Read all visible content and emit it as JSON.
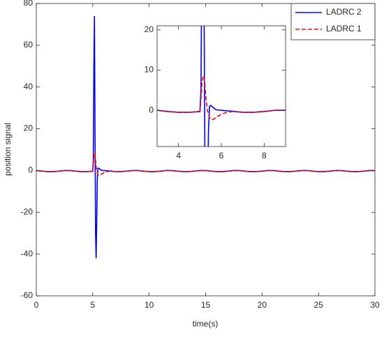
{
  "chart_data": {
    "type": "line",
    "xlabel": "time(s)",
    "ylabel": "position signal",
    "x": [
      0,
      0.5,
      1,
      1.5,
      2,
      2.5,
      3,
      3.5,
      4,
      4.5,
      5,
      5.05,
      5.1,
      5.15,
      5.2,
      5.25,
      5.3,
      5.35,
      5.4,
      5.45,
      5.5,
      5.6,
      5.7,
      5.8,
      6,
      6.2,
      6.5,
      7,
      7.5,
      8,
      8.5,
      9,
      9.5,
      10,
      10.5,
      11,
      11.5,
      12,
      12.5,
      13,
      13.5,
      14,
      14.5,
      15,
      15.5,
      16,
      16.5,
      17,
      17.5,
      18,
      18.5,
      19,
      19.5,
      20,
      20.5,
      21,
      21.5,
      22,
      22.5,
      23,
      23.5,
      24,
      24.5,
      25,
      25.5,
      26,
      26.5,
      27,
      27.5,
      28,
      28.5,
      29,
      29.5,
      30
    ],
    "series": [
      {
        "name": "LADRC 2",
        "color": "#0000ff",
        "dash": false,
        "values": [
          0,
          -0.3,
          -0.5,
          -0.5,
          -0.3,
          0,
          0,
          -0.3,
          -0.5,
          -0.5,
          -0.3,
          5,
          50,
          74,
          20,
          -30,
          -42,
          -25,
          -5,
          1,
          1.2,
          0.8,
          0.3,
          0.1,
          0,
          -0.1,
          -0.2,
          -0.5,
          -0.5,
          -0.3,
          0,
          0,
          -0.3,
          -0.5,
          -0.5,
          -0.3,
          0,
          0,
          -0.3,
          -0.5,
          -0.5,
          -0.3,
          0,
          0,
          -0.3,
          -0.5,
          -0.5,
          -0.3,
          0,
          0,
          -0.3,
          -0.5,
          -0.5,
          -0.3,
          0,
          0,
          -0.3,
          -0.5,
          -0.5,
          -0.3,
          0,
          0,
          -0.3,
          -0.5,
          -0.5,
          -0.3,
          0,
          0,
          -0.3,
          -0.5,
          -0.5,
          -0.3,
          0,
          0
        ]
      },
      {
        "name": "LADRC 1",
        "color": "#ff0000",
        "dash": true,
        "values": [
          0,
          -0.3,
          -0.5,
          -0.5,
          -0.3,
          0,
          0,
          -0.3,
          -0.5,
          -0.5,
          -0.3,
          3,
          7,
          8.5,
          8,
          5,
          2,
          0,
          -1,
          -1.8,
          -2.2,
          -2.3,
          -2,
          -1.6,
          -1,
          -0.6,
          -0.3,
          -0.5,
          -0.5,
          -0.3,
          0,
          0,
          -0.3,
          -0.5,
          -0.5,
          -0.3,
          0,
          0,
          -0.3,
          -0.5,
          -0.5,
          -0.3,
          0,
          0,
          -0.3,
          -0.5,
          -0.5,
          -0.3,
          0,
          0,
          -0.3,
          -0.5,
          -0.5,
          -0.3,
          0,
          0,
          -0.3,
          -0.5,
          -0.5,
          -0.3,
          0,
          0,
          -0.3,
          -0.5,
          -0.5,
          -0.3,
          0,
          0,
          -0.3,
          -0.5,
          -0.5,
          -0.3,
          0,
          0
        ]
      }
    ],
    "xlim": [
      0,
      30
    ],
    "xticks": [
      0,
      5,
      10,
      15,
      20,
      25,
      30
    ],
    "ylim": [
      -60,
      80
    ],
    "yticks": [
      -60,
      -40,
      -20,
      0,
      20,
      40,
      60,
      80
    ],
    "legend": "northeast",
    "inset": {
      "xlim": [
        3,
        9
      ],
      "xticks": [
        4,
        6,
        8
      ],
      "ylim": [
        -9,
        21
      ],
      "yticks": [
        0,
        10,
        20
      ]
    }
  }
}
